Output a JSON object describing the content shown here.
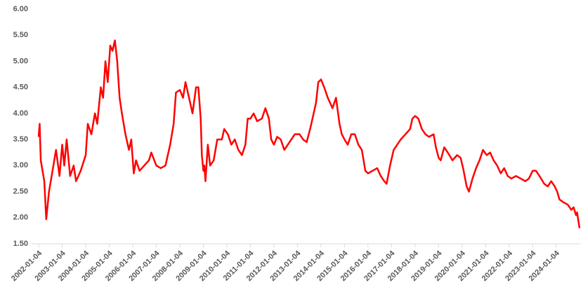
{
  "chart_data": {
    "type": "line",
    "color": "#ff0000",
    "x": [
      "2002-01-04",
      "2002-01-20",
      "2002-02-06",
      "2002-04-02",
      "2002-05-02",
      "2002-06-14",
      "2002-08-08",
      "2002-10-01",
      "2002-11-24",
      "2003-01-05",
      "2003-02-06",
      "2003-03-15",
      "2003-05-08",
      "2003-07-02",
      "2003-08-08",
      "2003-10-19",
      "2004-01-05",
      "2004-02-06",
      "2004-04-02",
      "2004-05-27",
      "2004-07-02",
      "2004-08-26",
      "2004-10-01",
      "2004-11-06",
      "2004-12-12",
      "2005-01-20",
      "2005-02-24",
      "2005-04-02",
      "2005-05-08",
      "2005-06-14",
      "2005-07-20",
      "2005-09-13",
      "2005-11-06",
      "2005-12-12",
      "2006-01-20",
      "2006-02-24",
      "2006-04-20",
      "2006-07-02",
      "2006-09-13",
      "2006-10-19",
      "2007-01-05",
      "2007-03-15",
      "2007-05-27",
      "2007-08-08",
      "2007-10-01",
      "2007-11-06",
      "2008-01-05",
      "2008-02-24",
      "2008-04-02",
      "2008-05-27",
      "2008-07-20",
      "2008-09-13",
      "2008-10-19",
      "2008-11-24",
      "2008-12-12",
      "2009-01-05",
      "2009-01-20",
      "2009-02-06",
      "2009-03-15",
      "2009-04-20",
      "2009-06-14",
      "2009-08-08",
      "2009-10-19",
      "2009-11-24",
      "2010-01-20",
      "2010-03-15",
      "2010-05-08",
      "2010-07-02",
      "2010-08-26",
      "2010-10-19",
      "2010-11-24",
      "2011-01-05",
      "2011-02-24",
      "2011-04-20",
      "2011-07-02",
      "2011-08-26",
      "2011-10-19",
      "2011-11-24",
      "2012-01-05",
      "2012-02-24",
      "2012-04-20",
      "2012-06-14",
      "2012-08-08",
      "2012-10-01",
      "2012-11-24",
      "2013-02-06",
      "2013-04-02",
      "2013-05-27",
      "2013-07-20",
      "2013-09-13",
      "2013-10-19",
      "2013-11-24",
      "2014-01-05",
      "2014-02-24",
      "2014-04-20",
      "2014-05-27",
      "2014-07-02",
      "2014-08-26",
      "2014-10-19",
      "2014-11-24",
      "2015-01-05",
      "2015-02-24",
      "2015-04-20",
      "2015-06-14",
      "2015-08-08",
      "2015-10-01",
      "2015-11-24",
      "2016-01-05",
      "2016-03-15",
      "2016-05-27",
      "2016-07-20",
      "2016-09-13",
      "2016-10-19",
      "2016-12-12",
      "2017-02-06",
      "2017-04-02",
      "2017-05-27",
      "2017-08-08",
      "2017-10-19",
      "2017-11-24",
      "2018-01-05",
      "2018-02-24",
      "2018-04-20",
      "2018-06-14",
      "2018-08-08",
      "2018-10-19",
      "2018-11-24",
      "2019-01-05",
      "2019-02-06",
      "2019-04-02",
      "2019-05-27",
      "2019-08-08",
      "2019-10-19",
      "2019-12-12",
      "2020-01-20",
      "2020-03-15",
      "2020-04-20",
      "2020-06-14",
      "2020-08-08",
      "2020-10-01",
      "2020-11-24",
      "2021-01-20",
      "2021-03-15",
      "2021-05-08",
      "2021-07-02",
      "2021-08-26",
      "2021-10-19",
      "2021-12-12",
      "2022-02-06",
      "2022-04-20",
      "2022-07-02",
      "2022-09-13",
      "2022-11-06",
      "2023-01-05",
      "2023-02-24",
      "2023-04-20",
      "2023-07-02",
      "2023-08-26",
      "2023-10-19",
      "2023-12-12",
      "2024-01-20",
      "2024-02-24",
      "2024-04-20",
      "2024-07-02",
      "2024-08-26",
      "2024-10-01",
      "2024-11-06",
      "2024-11-24",
      "2024-12-31"
    ],
    "values": [
      3.55,
      3.8,
      3.1,
      2.7,
      1.97,
      2.5,
      2.9,
      3.3,
      2.8,
      3.4,
      3.0,
      3.5,
      2.8,
      3.0,
      2.7,
      2.9,
      3.2,
      3.8,
      3.6,
      4.0,
      3.8,
      4.5,
      4.3,
      5.0,
      4.6,
      5.3,
      5.2,
      5.4,
      5.0,
      4.3,
      4.0,
      3.6,
      3.3,
      3.5,
      2.85,
      3.1,
      2.9,
      3.0,
      3.1,
      3.25,
      3.0,
      2.95,
      3.0,
      3.4,
      3.8,
      4.4,
      4.45,
      4.3,
      4.6,
      4.3,
      4.0,
      4.5,
      4.5,
      3.9,
      3.2,
      2.9,
      3.0,
      2.7,
      3.4,
      3.0,
      3.1,
      3.5,
      3.5,
      3.7,
      3.6,
      3.4,
      3.5,
      3.3,
      3.2,
      3.4,
      3.9,
      3.9,
      4.0,
      3.85,
      3.9,
      4.1,
      3.9,
      3.5,
      3.4,
      3.55,
      3.5,
      3.3,
      3.4,
      3.5,
      3.6,
      3.6,
      3.5,
      3.45,
      3.7,
      4.0,
      4.2,
      4.6,
      4.65,
      4.5,
      4.3,
      4.2,
      4.1,
      4.3,
      3.8,
      3.6,
      3.5,
      3.4,
      3.6,
      3.6,
      3.4,
      3.3,
      2.9,
      2.85,
      2.9,
      2.95,
      2.8,
      2.7,
      2.65,
      3.0,
      3.3,
      3.4,
      3.5,
      3.6,
      3.7,
      3.9,
      3.95,
      3.9,
      3.7,
      3.6,
      3.55,
      3.6,
      3.35,
      3.15,
      3.1,
      3.35,
      3.25,
      3.1,
      3.2,
      3.15,
      2.95,
      2.6,
      2.5,
      2.75,
      2.95,
      3.1,
      3.3,
      3.2,
      3.25,
      3.1,
      3.0,
      2.85,
      2.95,
      2.8,
      2.75,
      2.8,
      2.75,
      2.7,
      2.75,
      2.9,
      2.9,
      2.8,
      2.65,
      2.6,
      2.7,
      2.6,
      2.5,
      2.35,
      2.3,
      2.25,
      2.15,
      2.2,
      2.05,
      2.1,
      1.8
    ],
    "xlim": [
      "2002-01-04",
      "2024-12-31"
    ],
    "xticks": [
      "2002-01-04",
      "2003-01-04",
      "2004-01-04",
      "2005-01-04",
      "2006-01-04",
      "2007-01-04",
      "2008-01-04",
      "2009-01-04",
      "2010-01-04",
      "2011-01-04",
      "2012-01-04",
      "2013-01-04",
      "2014-01-04",
      "2015-01-04",
      "2016-01-04",
      "2017-01-04",
      "2018-01-04",
      "2019-01-04",
      "2020-01-04",
      "2021-01-04",
      "2022-01-04",
      "2023-01-04",
      "2024-01-04"
    ],
    "ylim": [
      1.5,
      6
    ],
    "yticks": [
      {
        "value": 1.5,
        "label": "1.50"
      },
      {
        "value": 2,
        "label": "2.00"
      },
      {
        "value": 2.5,
        "label": "2.50"
      },
      {
        "value": 3,
        "label": "3.00"
      },
      {
        "value": 3.5,
        "label": "3.50"
      },
      {
        "value": 4,
        "label": "4.00"
      },
      {
        "value": 4.5,
        "label": "4.50"
      },
      {
        "value": 5,
        "label": "5.00"
      },
      {
        "value": 5.5,
        "label": "5.50"
      },
      {
        "value": 6,
        "label": "6.00"
      }
    ],
    "grid": false
  }
}
